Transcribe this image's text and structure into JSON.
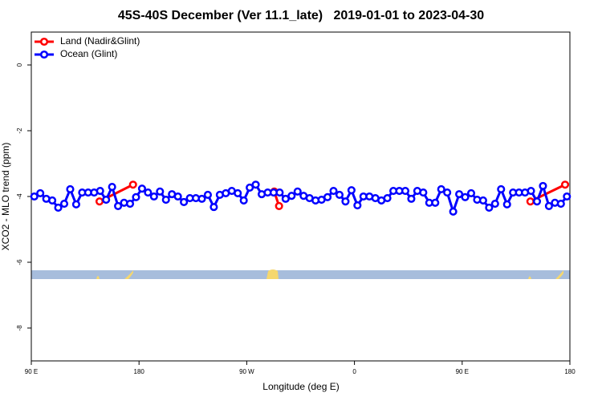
{
  "chart_data": {
    "type": "line",
    "title": "45S-40S December (Ver 11.1_late)   2019-01-01 to 2023-04-30",
    "x_label": "Longitude (deg E)",
    "y_label": "XCO2 - MLO trend (ppm)",
    "xlim": [
      90,
      540
    ],
    "ylim": [
      -9,
      1
    ],
    "xticks": [
      {
        "value": 90,
        "label": "90 E"
      },
      180,
      {
        "value": 270,
        "label": "90 W"
      },
      {
        "value": 360,
        "label": "0"
      },
      {
        "value": 450,
        "label": "90 E"
      },
      {
        "value": 540,
        "label": "180"
      }
    ],
    "yticks": [
      0,
      -2,
      -4,
      -6,
      -8
    ],
    "legend": "top-left",
    "series": [
      {
        "name": "Land (Nadir&Glint)",
        "color": "#ff0000",
        "x": [
          147,
          175,
          null,
          293,
          297,
          null,
          507,
          536
        ],
        "values": [
          -4.15,
          -3.64,
          null,
          -3.85,
          -4.29,
          null,
          -4.15,
          -3.64
        ]
      },
      {
        "name": "Ocean (Glint)",
        "color": "#0000ff",
        "x": [
          92.5,
          97.5,
          102.5,
          107.5,
          112.5,
          117.5,
          122.5,
          127.5,
          132.5,
          137.5,
          142.5,
          147.5,
          152.5,
          157.5,
          162.5,
          167.5,
          172.5,
          177.5,
          182.5,
          187.5,
          192.5,
          197.5,
          202.5,
          207.5,
          212.5,
          217.5,
          222.5,
          227.5,
          232.5,
          237.5,
          242.5,
          247.5,
          252.5,
          257.5,
          262.5,
          267.5,
          272.5,
          277.5,
          282.5,
          287.5,
          292.5,
          297.5,
          302.5,
          307.5,
          312.5,
          317.5,
          322.5,
          327.5,
          332.5,
          337.5,
          342.5,
          347.5,
          352.5,
          357.5,
          362.5,
          367.5,
          372.5,
          377.5,
          382.5,
          387.5,
          392.5,
          397.5,
          402.5,
          407.5,
          412.5,
          417.5,
          422.5,
          427.5,
          432.5,
          437.5,
          442.5,
          447.5,
          452.5,
          457.5,
          462.5,
          467.5,
          472.5,
          477.5,
          482.5,
          487.5,
          492.5,
          497.5,
          502.5,
          507.5,
          512.5,
          517.5,
          522.5,
          527.5,
          532.5,
          537.5
        ],
        "values": [
          -4.0,
          -3.9,
          -4.07,
          -4.12,
          -4.34,
          -4.22,
          -3.78,
          -4.24,
          -3.88,
          -3.88,
          -3.88,
          -3.83,
          -4.1,
          -3.71,
          -4.29,
          -4.19,
          -4.22,
          -4.02,
          -3.76,
          -3.88,
          -4.0,
          -3.85,
          -4.1,
          -3.93,
          -4.0,
          -4.17,
          -4.05,
          -4.05,
          -4.07,
          -3.95,
          -4.32,
          -3.95,
          -3.9,
          -3.83,
          -3.9,
          -4.12,
          -3.73,
          -3.64,
          -3.93,
          -3.88,
          -3.88,
          -3.88,
          -4.07,
          -3.98,
          -3.85,
          -3.98,
          -4.05,
          -4.12,
          -4.1,
          -4.02,
          -3.83,
          -3.95,
          -4.15,
          -3.81,
          -4.27,
          -4.0,
          -4.0,
          -4.05,
          -4.12,
          -4.05,
          -3.83,
          -3.83,
          -3.83,
          -4.07,
          -3.83,
          -3.88,
          -4.19,
          -4.19,
          -3.78,
          -3.88,
          -4.46,
          -3.93,
          -4.02,
          -3.9,
          -4.1,
          -4.12,
          -4.34,
          -4.22,
          -3.78,
          -4.24,
          -3.88,
          -3.88,
          -3.88,
          -3.83,
          -4.15,
          -3.68,
          -4.29,
          -4.19,
          -4.22,
          -4.0
        ]
      }
    ]
  }
}
